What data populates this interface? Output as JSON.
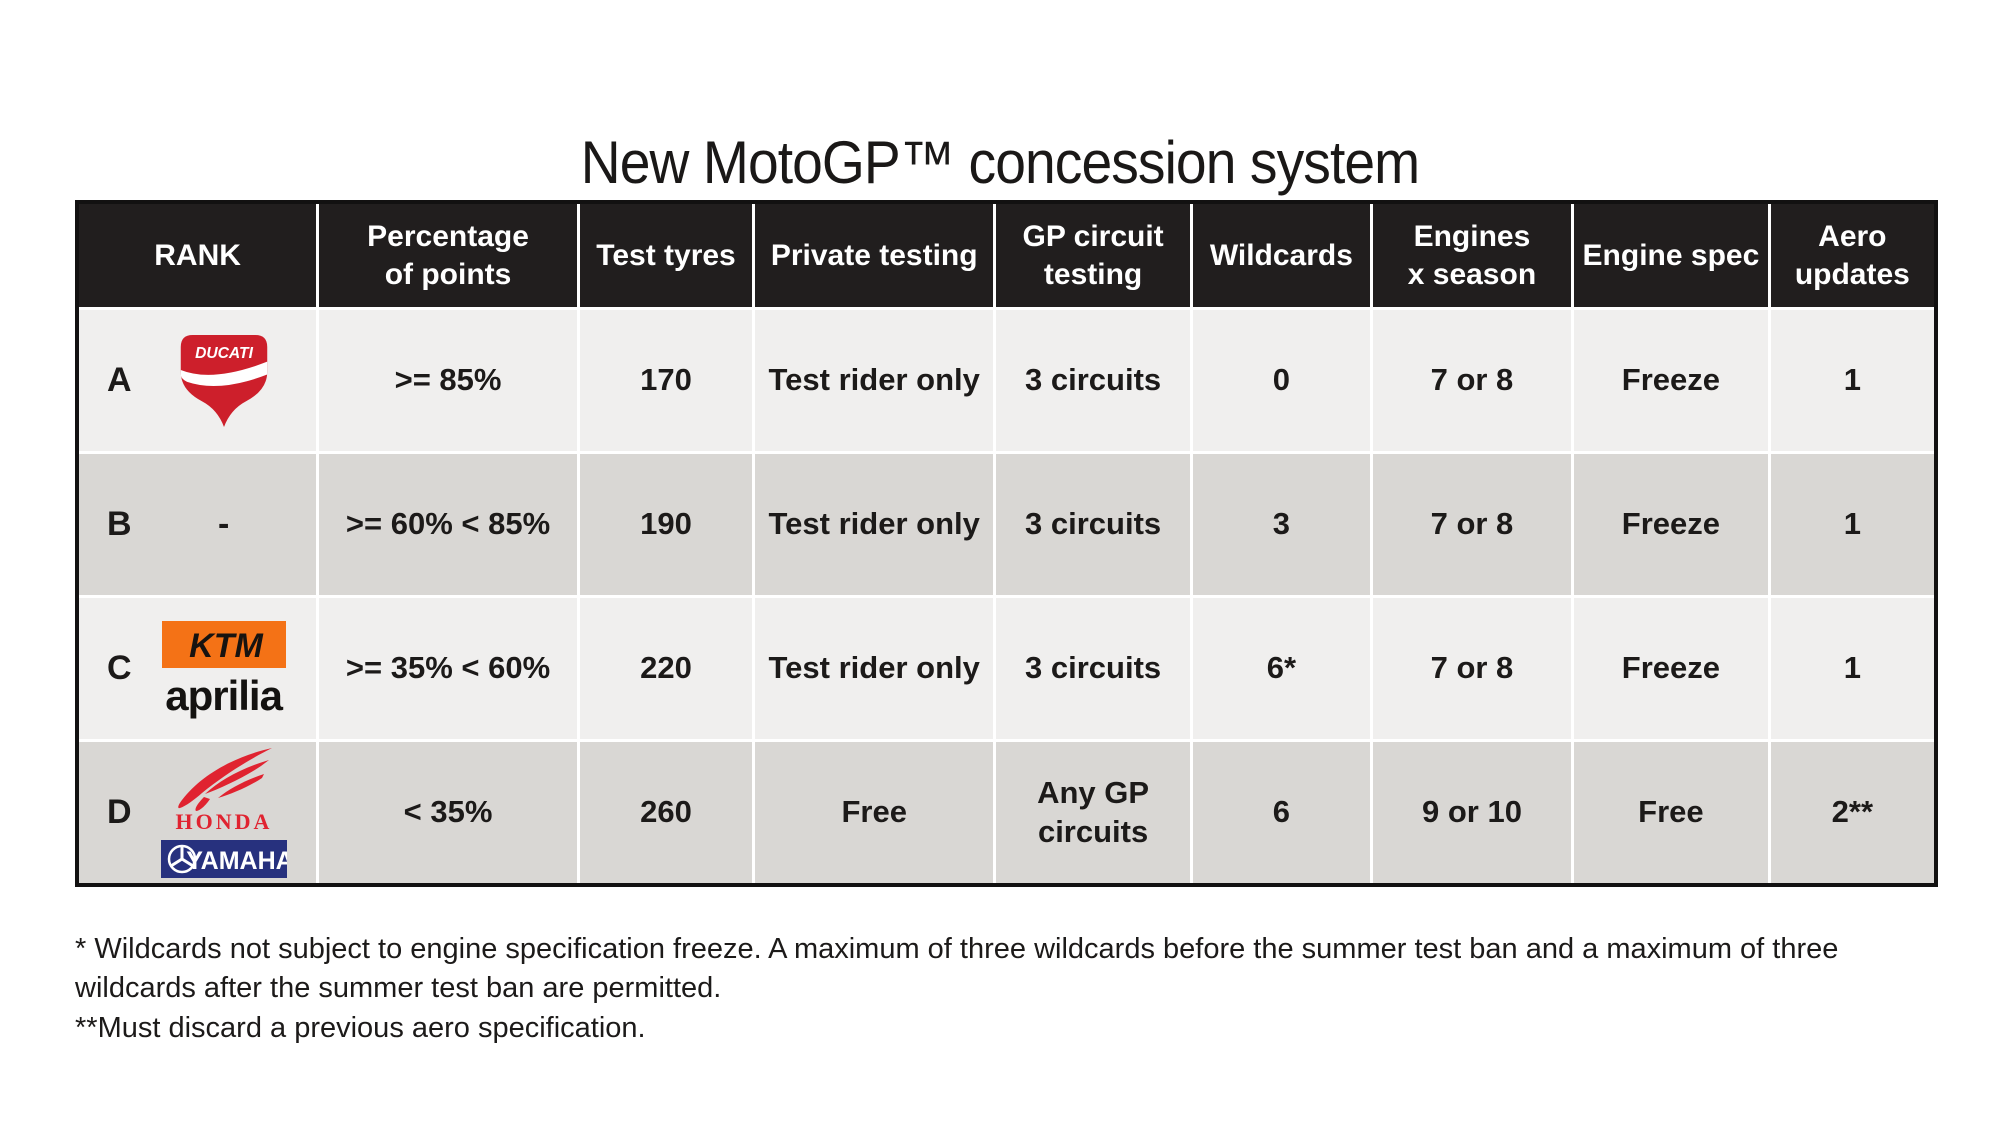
{
  "title": "New MotoGP™ concession system",
  "chart_data": {
    "type": "table",
    "title": "New MotoGP™ concession system",
    "columns": [
      "RANK",
      "Percentage of points",
      "Test tyres",
      "Private testing",
      "GP circuit testing",
      "Wildcards",
      "Engines x season",
      "Engine spec",
      "Aero updates"
    ],
    "rows": [
      [
        "A (Ducati)",
        ">= 85%",
        "170",
        "Test rider only",
        "3 circuits",
        "0",
        "7 or 8",
        "Freeze",
        "1"
      ],
      [
        "B (-)",
        ">= 60% < 85%",
        "190",
        "Test rider only",
        "3 circuits",
        "3",
        "7 or 8",
        "Freeze",
        "1"
      ],
      [
        "C (KTM, Aprilia)",
        ">= 35% < 60%",
        "220",
        "Test rider only",
        "3 circuits",
        "6*",
        "7 or 8",
        "Freeze",
        "1"
      ],
      [
        "D (Honda, Yamaha)",
        "< 35%",
        "260",
        "Free",
        "Any GP circuits",
        "6",
        "9 or 10",
        "Free",
        "2**"
      ]
    ]
  },
  "table": {
    "headers": [
      "RANK",
      "Percentage of points",
      "Test tyres",
      "Private testing",
      "GP circuit testing",
      "Wildcards",
      "Engines x season",
      "Engine spec",
      "Aero updates"
    ],
    "rows": [
      {
        "rank": "A",
        "manufacturers": [
          "ducati"
        ],
        "placeholder": "",
        "cells": [
          ">= 85%",
          "170",
          "Test rider only",
          "3 circuits",
          "0",
          "7 or 8",
          "Freeze",
          "1"
        ]
      },
      {
        "rank": "B",
        "manufacturers": [],
        "placeholder": "-",
        "cells": [
          ">= 60% < 85%",
          "190",
          "Test rider only",
          "3 circuits",
          "3",
          "7 or 8",
          "Freeze",
          "1"
        ]
      },
      {
        "rank": "C",
        "manufacturers": [
          "ktm",
          "aprilia"
        ],
        "placeholder": "",
        "cells": [
          ">= 35% < 60%",
          "220",
          "Test rider only",
          "3 circuits",
          "6*",
          "7 or 8",
          "Freeze",
          "1"
        ]
      },
      {
        "rank": "D",
        "manufacturers": [
          "honda",
          "yamaha"
        ],
        "placeholder": "",
        "cells": [
          "< 35%",
          "260",
          "Free",
          "Any GP circuits",
          "6",
          "9 or 10",
          "Free",
          "2**"
        ]
      }
    ]
  },
  "logos": {
    "ducati": "DUCATI",
    "ktm": "KTM",
    "aprilia": "aprilia",
    "honda": "HONDA",
    "yamaha": "YAMAHA"
  },
  "footnotes": [
    "* Wildcards not subject to engine specification freeze. A maximum of three wildcards before the summer test ban and a maximum of three wildcards after the summer test ban are permitted.",
    "**Must discard a previous aero specification."
  ],
  "colors": {
    "header_bg": "#211e1e",
    "row_light": "#f0efee",
    "row_dark": "#d9d7d4",
    "border": "#121111",
    "ducati_red": "#cd1f2b",
    "ktm_orange": "#f47216",
    "honda_red": "#e02330",
    "yamaha_blue": "#27317e",
    "text": "#1c1a19"
  }
}
